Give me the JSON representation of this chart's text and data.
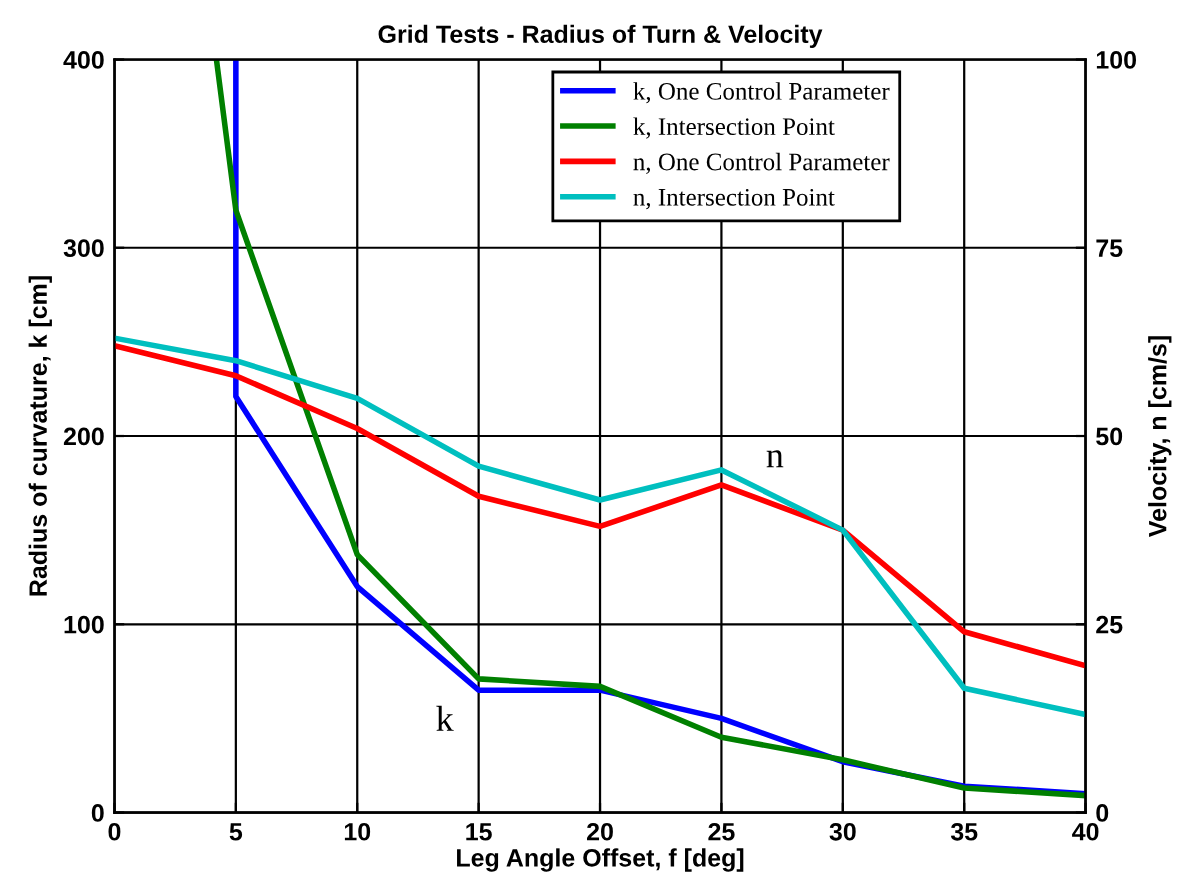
{
  "chart_data": {
    "type": "line",
    "title": "Grid Tests - Radius of Turn & Velocity",
    "xlabel": "Leg Angle Offset, f [deg]",
    "ylabel": "Radius of curvature, k [cm]",
    "y2label": "Velocity, n [cm/s]",
    "xlim": [
      0,
      40
    ],
    "xticks": [
      0,
      5,
      10,
      15,
      20,
      25,
      30,
      35,
      40
    ],
    "ylim": [
      0,
      400
    ],
    "yticks": [
      0,
      100,
      200,
      300,
      400
    ],
    "y2lim": [
      0,
      100
    ],
    "y2ticks": [
      0,
      25,
      50,
      75,
      100
    ],
    "grid": true,
    "legend": "top right",
    "marker": "none",
    "line_style": "solid",
    "series": [
      {
        "name": "k, One Control Parameter",
        "color": "#0000ff",
        "x": [
          5,
          5,
          10,
          15,
          20,
          25,
          30,
          35,
          40
        ],
        "values": [
          400,
          221,
          120,
          65,
          65,
          50,
          27,
          14,
          10
        ]
      },
      {
        "name": "k, Intersection Point",
        "color": "#008000",
        "x": [
          4.2,
          5,
          10,
          15,
          20,
          25,
          30,
          35,
          40
        ],
        "values": [
          400,
          320,
          137,
          71,
          67,
          40,
          28,
          13,
          9
        ]
      },
      {
        "name": "n, One Control Parameter",
        "color": "#ff0000",
        "axis": "y2",
        "x": [
          0,
          5,
          10,
          15,
          20,
          25,
          30,
          35,
          40
        ],
        "values": [
          62,
          58,
          51,
          42,
          38,
          43.5,
          37.5,
          24,
          19.5
        ]
      },
      {
        "name": "n, Intersection Point",
        "color": "#00bfbf",
        "axis": "y2",
        "x": [
          0,
          5,
          10,
          15,
          20,
          25,
          30,
          35,
          40
        ],
        "values": [
          63,
          60,
          55,
          46,
          41.5,
          45.5,
          37.5,
          16.5,
          13
        ]
      }
    ],
    "annotations": [
      "k",
      "n"
    ]
  }
}
